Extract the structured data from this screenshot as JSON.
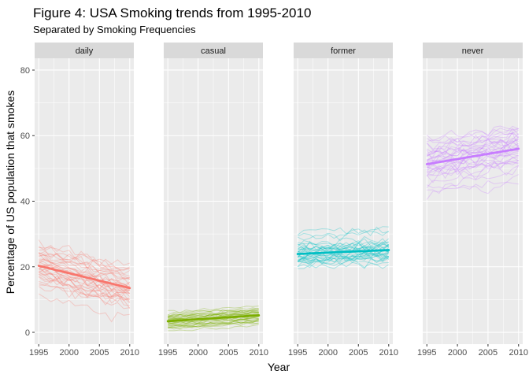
{
  "chart_data": {
    "type": "line",
    "title": "Figure 4: USA Smoking trends from 1995-2010",
    "subtitle": "Separated by Smoking Frequencies",
    "xlabel": "Year",
    "ylabel": "Percentage of US population that smokes",
    "xlim": [
      1995,
      2010
    ],
    "ylim": [
      0,
      80
    ],
    "x_ticks": [
      "1995",
      "2000",
      "2005",
      "2010"
    ],
    "y_ticks": [
      "0",
      "20",
      "40",
      "60",
      "80"
    ],
    "grid": true,
    "facets": [
      {
        "label": "daily",
        "color": "#F8766D",
        "trend": {
          "start": 20.3,
          "end": 13.5
        },
        "spread": 3.5,
        "line_count": 35
      },
      {
        "label": "casual",
        "color": "#7CAE00",
        "trend": {
          "start": 3.4,
          "end": 5.2
        },
        "spread": 1.2,
        "line_count": 35
      },
      {
        "label": "former",
        "color": "#00BFC4",
        "trend": {
          "start": 23.9,
          "end": 25.1
        },
        "spread": 3.0,
        "line_count": 35
      },
      {
        "label": "never",
        "color": "#C77CFF",
        "trend": {
          "start": 51.3,
          "end": 56.0
        },
        "spread": 4.0,
        "line_count": 35
      }
    ]
  }
}
